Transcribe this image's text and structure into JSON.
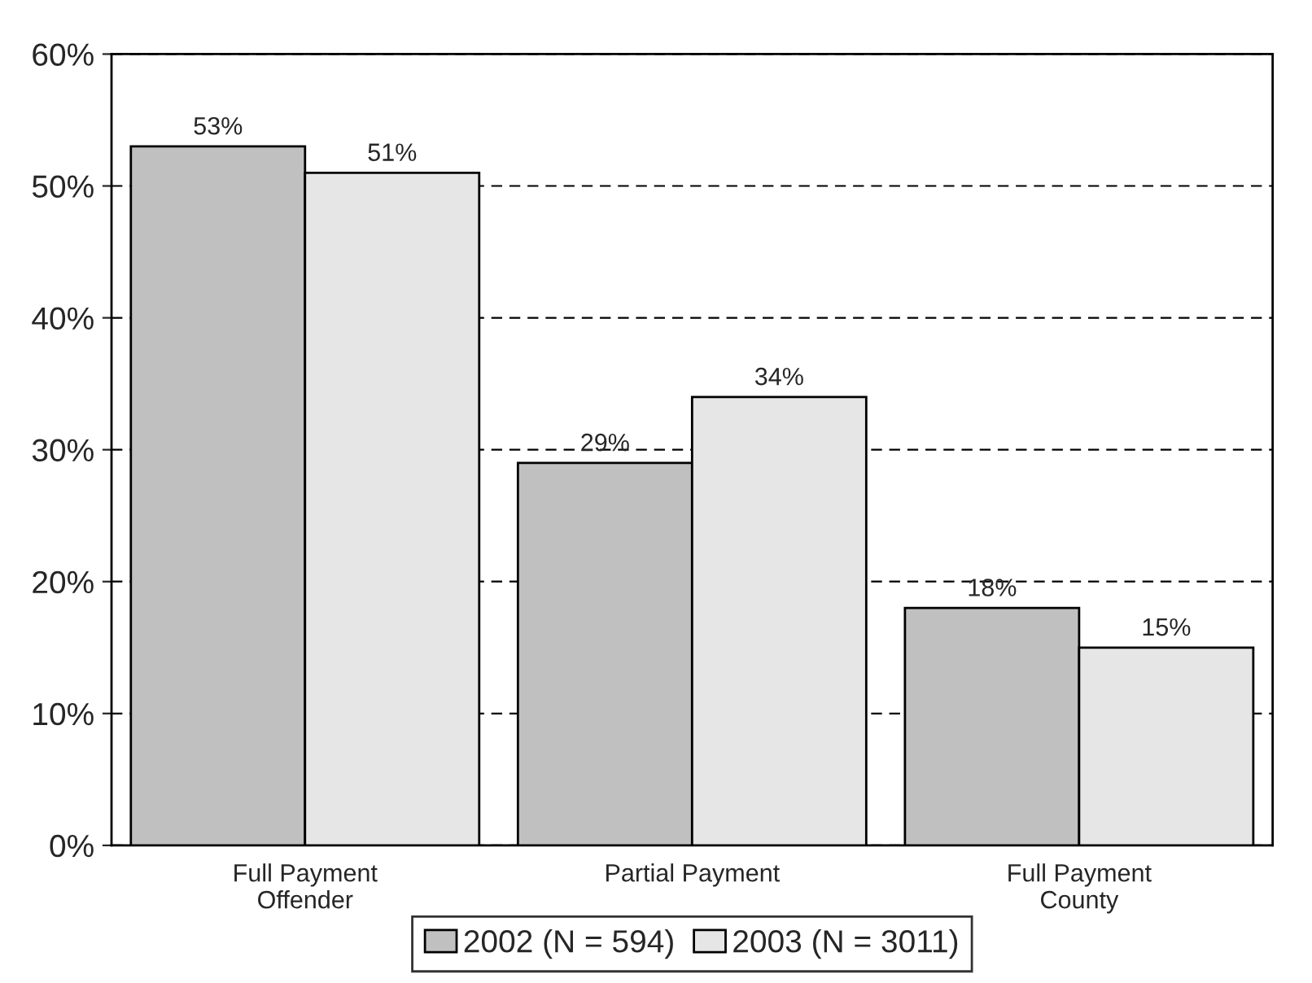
{
  "chart_data": {
    "type": "bar",
    "categories": [
      "Full Payment\nOffender",
      "Partial Payment",
      "Full Payment\nCounty"
    ],
    "series": [
      {
        "name": "2002 (N = 594)",
        "color": "#c0c0c0",
        "values": [
          53,
          29,
          18
        ],
        "value_labels": [
          "53%",
          "29%",
          "18%"
        ]
      },
      {
        "name": "2003 (N = 3011)",
        "color": "#e6e6e6",
        "values": [
          51,
          34,
          15
        ],
        "value_labels": [
          "51%",
          "34%",
          "15%"
        ]
      }
    ],
    "ylim": [
      0,
      60
    ],
    "yticks": [
      {
        "value": 0,
        "label": "0%"
      },
      {
        "value": 10,
        "label": "10%"
      },
      {
        "value": 20,
        "label": "20%"
      },
      {
        "value": 30,
        "label": "30%"
      },
      {
        "value": 40,
        "label": "40%"
      },
      {
        "value": 50,
        "label": "50%"
      },
      {
        "value": 60,
        "label": "60%"
      }
    ],
    "grid": "y",
    "legend": "bottom"
  }
}
